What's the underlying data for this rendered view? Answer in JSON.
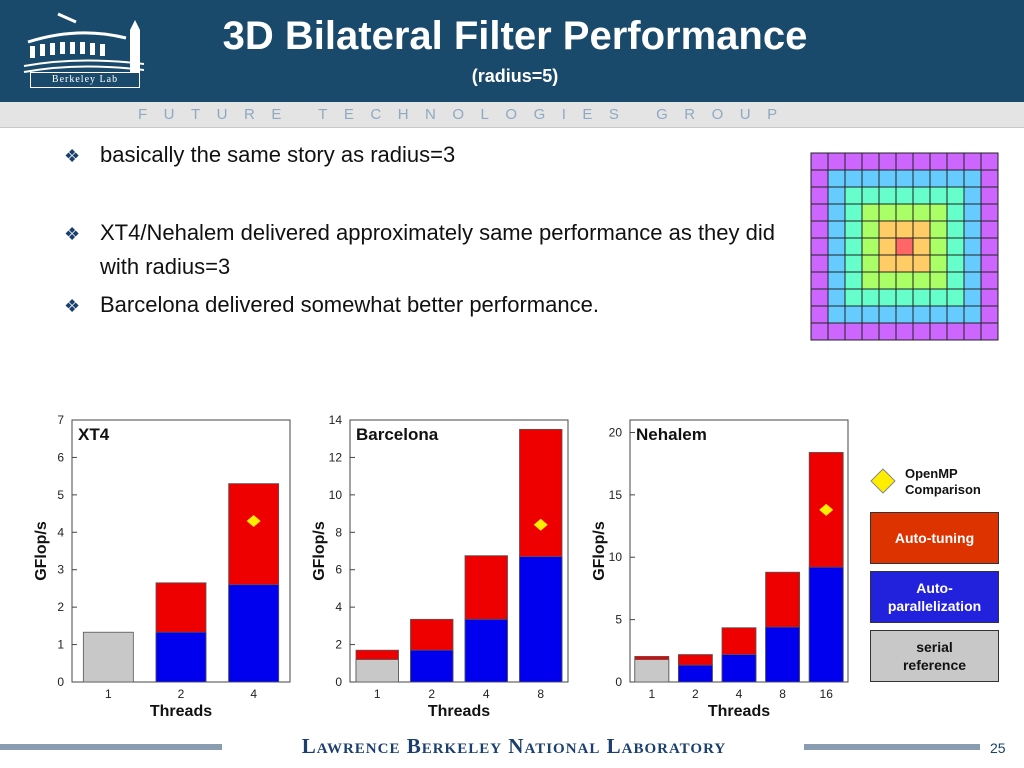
{
  "header": {
    "title": "3D Bilateral Filter Performance",
    "subtitle": "(radius=5)",
    "logo_text": "Berkeley Lab",
    "tagline": "FUTURE TECHNOLOGIES GROUP",
    "background_color": "#1a4a6b"
  },
  "bullets": [
    "basically the same story as radius=3",
    "XT4/Nehalem delivered approximately same performance as they did with radius=3",
    "Barcelona delivered somewhat better performance."
  ],
  "stencil_icon": "stencil-grid-icon",
  "legend": {
    "openmp": "OpenMP Comparison",
    "autotuning": "Auto-tuning",
    "autoparallelization": "Auto-parallelization",
    "serial": "serial reference"
  },
  "colors": {
    "serial": "#c8c8c8",
    "autopar": "#0000ee",
    "autotune": "#ee0000",
    "openmp": "#ffee00"
  },
  "footer": {
    "text": "Lawrence Berkeley National Laboratory",
    "page": "25"
  },
  "chart_data": [
    {
      "type": "bar",
      "title": "XT4",
      "xlabel": "Threads",
      "ylabel": "GFlop/s",
      "ylim": [
        0,
        7
      ],
      "yticks": [
        0,
        1,
        2,
        3,
        4,
        5,
        6,
        7
      ],
      "categories": [
        "1",
        "2",
        "4"
      ],
      "series": [
        {
          "values": [
            1.33,
            0,
            0
          ]
        },
        {
          "values": [
            0,
            1.33,
            2.6
          ]
        },
        {
          "values": [
            0,
            2.65,
            5.3
          ]
        }
      ],
      "openmp": [
        null,
        null,
        4.3
      ]
    },
    {
      "type": "bar",
      "title": "Barcelona",
      "xlabel": "Threads",
      "ylabel": "GFlop/s",
      "ylim": [
        0,
        14
      ],
      "yticks": [
        0,
        2,
        4,
        6,
        8,
        10,
        12,
        14
      ],
      "categories": [
        "1",
        "2",
        "4",
        "8"
      ],
      "series": [
        {
          "values": [
            1.2,
            0,
            0,
            0
          ]
        },
        {
          "values": [
            0,
            1.7,
            3.35,
            6.7
          ]
        },
        {
          "values": [
            1.7,
            3.35,
            6.75,
            13.5
          ]
        }
      ],
      "openmp": [
        null,
        null,
        null,
        8.4
      ]
    },
    {
      "type": "bar",
      "title": "Nehalem",
      "xlabel": "Threads",
      "ylabel": "GFlop/s",
      "ylim": [
        0,
        21
      ],
      "yticks": [
        0,
        5,
        10,
        15,
        20
      ],
      "categories": [
        "1",
        "2",
        "4",
        "8",
        "16"
      ],
      "series": [
        {
          "values": [
            1.8,
            0,
            0,
            0,
            0
          ]
        },
        {
          "values": [
            0,
            1.35,
            2.2,
            4.4,
            9.2
          ]
        },
        {
          "values": [
            2.05,
            2.2,
            4.35,
            8.8,
            18.4
          ]
        }
      ],
      "openmp": [
        null,
        null,
        null,
        null,
        13.8
      ]
    }
  ]
}
